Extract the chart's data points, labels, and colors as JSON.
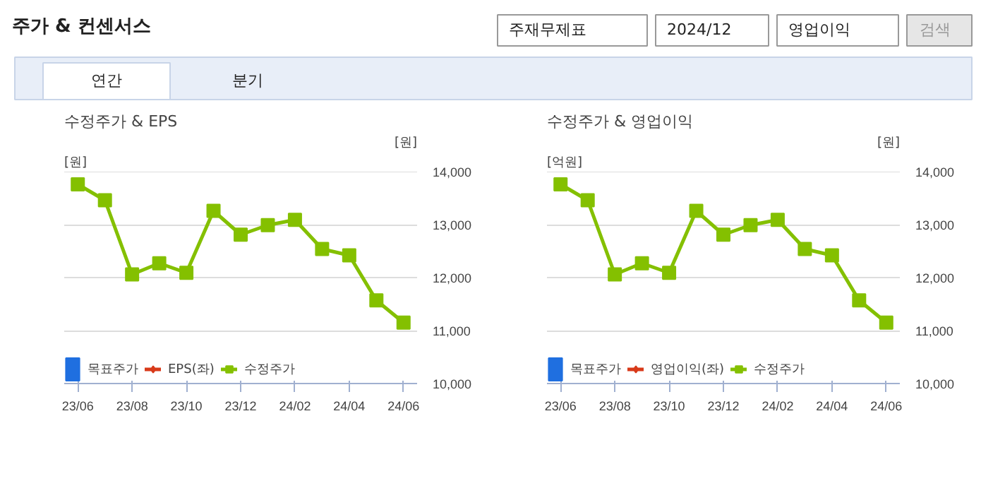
{
  "chart_data": [
    {
      "type": "other",
      "title": "주가 & 컨센서스",
      "annotations": [
        "주재무제표",
        "2024/12",
        "영업이익",
        "검색",
        "연간",
        "분기"
      ]
    },
    {
      "type": "line",
      "title": "수정주가 & EPS",
      "ylabel": "[원]",
      "y2label": "[원]",
      "categories": [
        "23/06",
        null,
        "23/08",
        null,
        "23/10",
        null,
        "23/12",
        null,
        "24/02",
        null,
        "24/04",
        null,
        "24/06"
      ],
      "y2lim": [
        10000,
        14000
      ],
      "y2ticks": [
        {
          "value": 10000,
          "label": "10,000"
        },
        {
          "value": 11000,
          "label": "11,000"
        },
        {
          "value": 12000,
          "label": "12,000"
        },
        {
          "value": 13000,
          "label": "13,000"
        },
        {
          "value": 14000,
          "label": "14,000"
        }
      ],
      "grid": "y",
      "legend": "bottom",
      "series": [
        {
          "name": "목표주가",
          "color": "#1f6fe0",
          "type": "bar",
          "values": [
            null,
            null,
            null,
            null,
            null,
            null,
            null,
            null,
            null,
            null,
            null,
            null,
            null
          ]
        },
        {
          "name": "EPS(좌)",
          "color": "#d83a1a",
          "marker": "diamond",
          "values": [
            null,
            null,
            null,
            null,
            null,
            null,
            null,
            null,
            null,
            null,
            null,
            null,
            null
          ]
        },
        {
          "name": "수정주가",
          "color": "#84c000",
          "marker": "square",
          "axis": "y2",
          "values": [
            13760,
            13460,
            12060,
            12270,
            12090,
            13260,
            12810,
            12990,
            13090,
            12540,
            12420,
            11570,
            11150
          ]
        }
      ]
    },
    {
      "type": "line",
      "title": "수정주가 & 영업이익",
      "ylabel": "[억원]",
      "y2label": "[원]",
      "categories": [
        "23/06",
        null,
        "23/08",
        null,
        "23/10",
        null,
        "23/12",
        null,
        "24/02",
        null,
        "24/04",
        null,
        "24/06"
      ],
      "y2lim": [
        10000,
        14000
      ],
      "y2ticks": [
        {
          "value": 10000,
          "label": "10,000"
        },
        {
          "value": 11000,
          "label": "11,000"
        },
        {
          "value": 12000,
          "label": "12,000"
        },
        {
          "value": 13000,
          "label": "13,000"
        },
        {
          "value": 14000,
          "label": "14,000"
        }
      ],
      "grid": "y",
      "legend": "bottom",
      "series": [
        {
          "name": "목표주가",
          "color": "#1f6fe0",
          "type": "bar",
          "values": [
            null,
            null,
            null,
            null,
            null,
            null,
            null,
            null,
            null,
            null,
            null,
            null,
            null
          ]
        },
        {
          "name": "영업이익(좌)",
          "color": "#d83a1a",
          "marker": "diamond",
          "values": [
            null,
            null,
            null,
            null,
            null,
            null,
            null,
            null,
            null,
            null,
            null,
            null,
            null
          ]
        },
        {
          "name": "수정주가",
          "color": "#84c000",
          "marker": "square",
          "axis": "y2",
          "values": [
            13760,
            13460,
            12060,
            12270,
            12090,
            13260,
            12810,
            12990,
            13090,
            12540,
            12420,
            11570,
            11150
          ]
        }
      ]
    }
  ]
}
